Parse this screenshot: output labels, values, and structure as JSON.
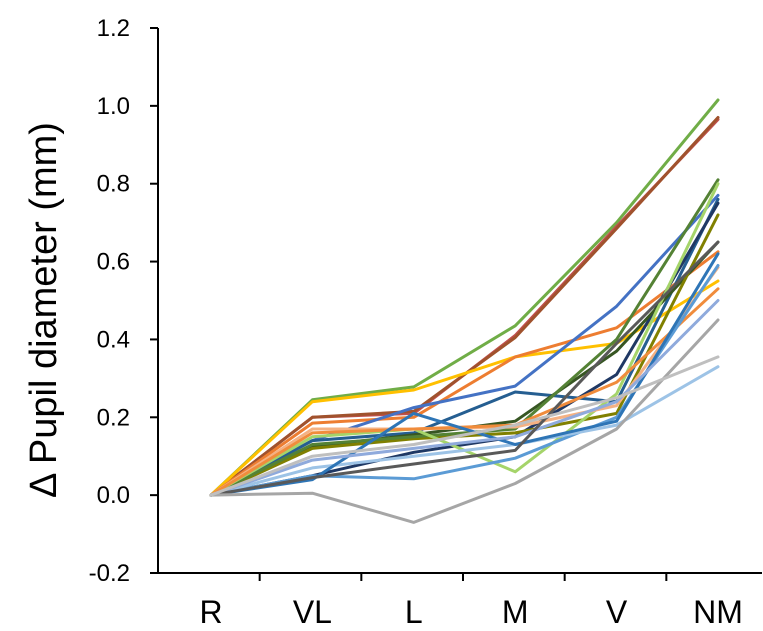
{
  "chart_data": {
    "type": "line",
    "title": "",
    "xlabel": "",
    "ylabel": "Δ Pupil diameter (mm)",
    "categories": [
      "R",
      "VL",
      "L",
      "M",
      "V",
      "NM"
    ],
    "ylim": [
      -0.2,
      1.2
    ],
    "yticks": [
      -0.2,
      0.0,
      0.2,
      0.4,
      0.6,
      0.8,
      1.0,
      1.2
    ],
    "ytick_labels": [
      "-0.2",
      "0.0",
      "0.2",
      "0.4",
      "0.6",
      "0.8",
      "1.0",
      "1.2"
    ],
    "grid": false,
    "legend": "none",
    "series": [
      {
        "color": "#70AD47",
        "values": [
          0,
          0.245,
          0.278,
          0.435,
          0.7,
          1.015
        ]
      },
      {
        "color": "#C0504D",
        "values": [
          0,
          0.2,
          0.21,
          0.41,
          0.69,
          0.965
        ]
      },
      {
        "color": "#A0522D",
        "values": [
          0,
          0.2,
          0.215,
          0.405,
          0.685,
          0.97
        ]
      },
      {
        "color": "#FFC000",
        "values": [
          0,
          0.24,
          0.27,
          0.355,
          0.39,
          0.55
        ]
      },
      {
        "color": "#ED7D31",
        "values": [
          0,
          0.185,
          0.2,
          0.355,
          0.43,
          0.625
        ]
      },
      {
        "color": "#4472C4",
        "values": [
          0,
          0.14,
          0.225,
          0.28,
          0.485,
          0.77
        ]
      },
      {
        "color": "#255E91",
        "values": [
          0,
          0.14,
          0.16,
          0.265,
          0.24,
          0.76
        ]
      },
      {
        "color": "#1F3864",
        "values": [
          0,
          0.05,
          0.11,
          0.15,
          0.31,
          0.75
        ]
      },
      {
        "color": "#375623",
        "values": [
          0,
          0.125,
          0.155,
          0.19,
          0.37,
          0.65
        ]
      },
      {
        "color": "#808000",
        "values": [
          0,
          0.12,
          0.145,
          0.16,
          0.21,
          0.72
        ]
      },
      {
        "color": "#548235",
        "values": [
          0,
          0.13,
          0.15,
          0.17,
          0.4,
          0.81
        ]
      },
      {
        "color": "#A5D46A",
        "values": [
          0,
          0.15,
          0.17,
          0.06,
          0.26,
          0.8
        ]
      },
      {
        "color": "#F4B183",
        "values": [
          0,
          0.17,
          0.17,
          0.175,
          0.23,
          0.585
        ]
      },
      {
        "color": "#F08C3C",
        "values": [
          0,
          0.16,
          0.17,
          0.18,
          0.29,
          0.53
        ]
      },
      {
        "color": "#5B9BD5",
        "values": [
          0,
          0.05,
          0.042,
          0.095,
          0.2,
          0.59
        ]
      },
      {
        "color": "#9DC3E6",
        "values": [
          0,
          0.07,
          0.1,
          0.13,
          0.18,
          0.33
        ]
      },
      {
        "color": "#2E75B6",
        "values": [
          0,
          0.04,
          0.21,
          0.13,
          0.19,
          0.62
        ]
      },
      {
        "color": "#8FAADC",
        "values": [
          0,
          0.09,
          0.12,
          0.15,
          0.24,
          0.5
        ]
      },
      {
        "color": "#595959",
        "values": [
          0,
          0.045,
          0.08,
          0.115,
          0.39,
          0.65
        ]
      },
      {
        "color": "#A6A6A6",
        "values": [
          0,
          0.005,
          -0.07,
          0.03,
          0.17,
          0.45
        ]
      },
      {
        "color": "#BFBFBF",
        "values": [
          0,
          0.1,
          0.13,
          0.18,
          0.25,
          0.355
        ]
      }
    ]
  }
}
